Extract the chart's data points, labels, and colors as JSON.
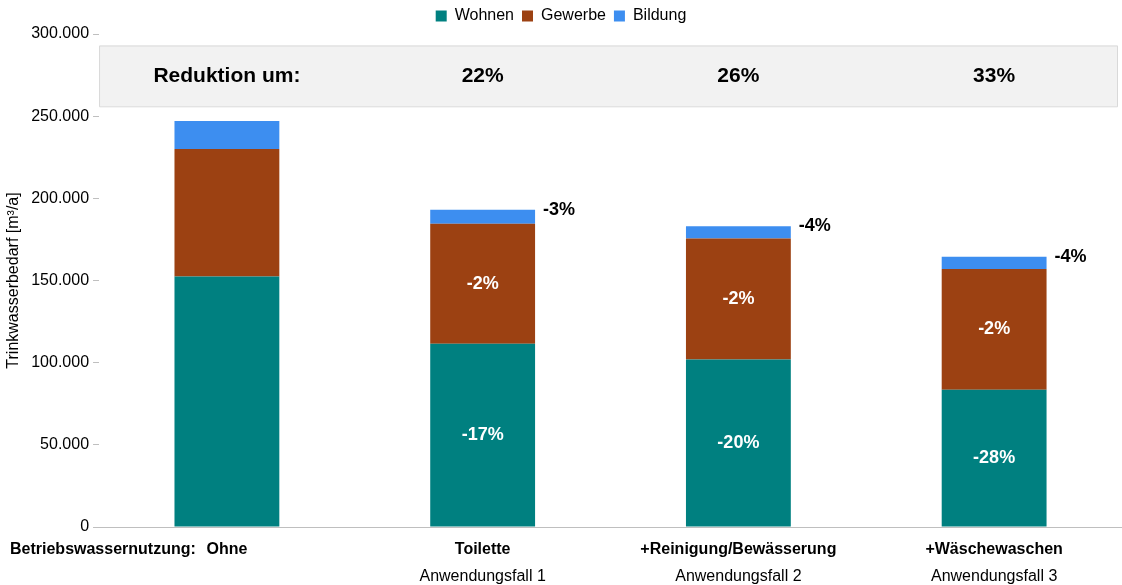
{
  "chart_data": {
    "type": "bar",
    "stacked": true,
    "categories": [
      "Ohne",
      "Toilette\nAnwendungsfall 1",
      "+Reinigung/Bewässerung\nAnwendungsfall 2",
      "+Wäschewaschen\nAnwendungsfall 3"
    ],
    "xlabel": "Betriebswassernutzung:",
    "ylabel": "Trinkwasserbedarf [m³/a]",
    "series": [
      {
        "name": "Wohnen",
        "color": "#008080",
        "values": [
          152500,
          111500,
          102000,
          83500
        ]
      },
      {
        "name": "Gewerbe",
        "color": "#9c4112",
        "values": [
          77500,
          73000,
          73500,
          73500
        ]
      },
      {
        "name": "Bildung",
        "color": "#3d8ef0",
        "values": [
          17000,
          8500,
          7500,
          7500
        ]
      }
    ],
    "ylim": [
      0,
      300000
    ],
    "yticks": [
      {
        "value": 0,
        "label": "0"
      },
      {
        "value": 50000,
        "label": "50.000"
      },
      {
        "value": 100000,
        "label": "100.000"
      },
      {
        "value": 150000,
        "label": "150.000"
      },
      {
        "value": 200000,
        "label": "200.000"
      },
      {
        "value": 250000,
        "label": "250.000"
      },
      {
        "value": 300000,
        "label": "300.000"
      }
    ],
    "bands": [
      {
        "axis": "y",
        "from": 256000,
        "to": 293000,
        "color": "#f2f2f2"
      }
    ],
    "annotations": [
      "Reduktion um:",
      "22%",
      "26%",
      "33%",
      "-17%",
      "-20%",
      "-28%",
      "-2%",
      "-2%",
      "-2%",
      "-3%",
      "-4%",
      "-4%"
    ],
    "grid": false,
    "legend": "top"
  }
}
